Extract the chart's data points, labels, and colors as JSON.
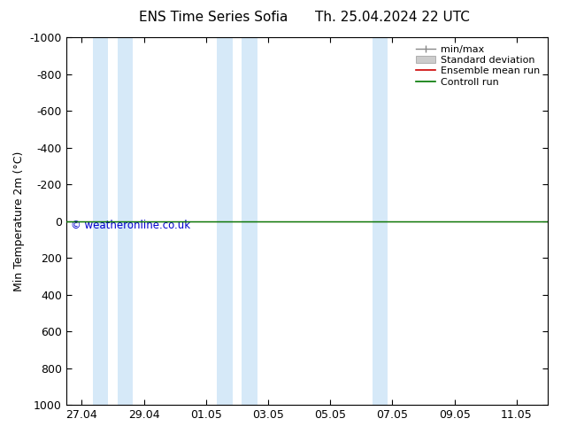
{
  "title_left": "ENS Time Series Sofia",
  "title_right": "Th. 25.04.2024 22 UTC",
  "ylabel": "Min Temperature 2m (°C)",
  "ylim": [
    -1000,
    1000
  ],
  "yticks": [
    -1000,
    -800,
    -600,
    -400,
    -200,
    0,
    200,
    400,
    600,
    800,
    1000
  ],
  "ytick_labels": [
    "-1000",
    "-800",
    "-600",
    "-400",
    "-200",
    "0",
    "200",
    "400",
    "600",
    "800",
    "1000"
  ],
  "background_color": "#ffffff",
  "plot_bg_color": "#ffffff",
  "x_tick_labels": [
    "27.04",
    "29.04",
    "01.05",
    "03.05",
    "05.05",
    "07.05",
    "09.05",
    "11.05"
  ],
  "x_tick_positions": [
    0,
    2,
    4,
    6,
    8,
    10,
    12,
    14
  ],
  "blue_bands": [
    [
      0.35,
      0.85
    ],
    [
      1.15,
      1.65
    ],
    [
      4.35,
      4.85
    ],
    [
      5.15,
      5.65
    ],
    [
      9.35,
      9.85
    ]
  ],
  "blue_band_color": "#d6e9f8",
  "control_run_y": 0,
  "control_run_color": "#007700",
  "ensemble_mean_color": "#cc0000",
  "minmax_color": "#888888",
  "std_dev_color": "#cccccc",
  "legend_labels": [
    "min/max",
    "Standard deviation",
    "Ensemble mean run",
    "Controll run"
  ],
  "watermark": "© weatheronline.co.uk",
  "watermark_color": "#0000cc",
  "spine_color": "#000000",
  "xlim": [
    -0.5,
    15.0
  ]
}
